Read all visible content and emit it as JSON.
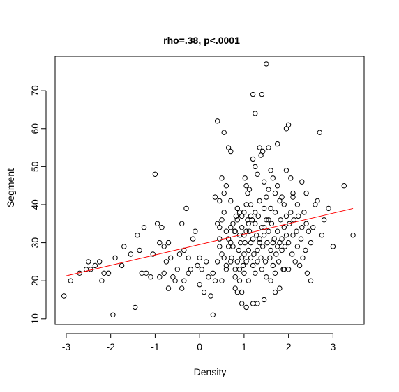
{
  "chart_data": {
    "type": "scatter",
    "title": "rho=.38, p<.0001",
    "xlabel": "Density",
    "ylabel": "Segment",
    "xlim": [
      -3.25,
      3.7
    ],
    "ylim": [
      8.5,
      79
    ],
    "x_ticks": [
      -3,
      -2,
      -1,
      0,
      1,
      2,
      3
    ],
    "y_ticks": [
      10,
      20,
      30,
      40,
      50,
      60,
      70
    ],
    "grid": false,
    "legend": "none",
    "colors": {
      "points": "#000000",
      "fit_line": "#ff0000",
      "frame": "#000000"
    },
    "fit_line": {
      "x": [
        -3.0,
        3.45
      ],
      "y": [
        21.3,
        39.0
      ]
    },
    "points": [
      [
        -3.05,
        16
      ],
      [
        -2.9,
        20
      ],
      [
        -2.7,
        22
      ],
      [
        -2.55,
        23
      ],
      [
        -2.5,
        25
      ],
      [
        -2.45,
        23
      ],
      [
        -2.35,
        24
      ],
      [
        -2.25,
        25
      ],
      [
        -2.2,
        20
      ],
      [
        -2.15,
        22
      ],
      [
        -2.05,
        22
      ],
      [
        -1.95,
        11
      ],
      [
        -1.9,
        26
      ],
      [
        -1.75,
        24
      ],
      [
        -1.7,
        29
      ],
      [
        -1.55,
        27
      ],
      [
        -1.45,
        13
      ],
      [
        -1.4,
        32
      ],
      [
        -1.35,
        28
      ],
      [
        -1.3,
        22
      ],
      [
        -1.25,
        34
      ],
      [
        -1.2,
        22
      ],
      [
        -1.1,
        21
      ],
      [
        -1.05,
        27
      ],
      [
        -1.0,
        48
      ],
      [
        -0.95,
        35
      ],
      [
        -0.9,
        21
      ],
      [
        -0.9,
        30
      ],
      [
        -0.85,
        34
      ],
      [
        -0.8,
        22
      ],
      [
        -0.8,
        29
      ],
      [
        -0.75,
        25
      ],
      [
        -0.7,
        18
      ],
      [
        -0.7,
        30
      ],
      [
        -0.65,
        26
      ],
      [
        -0.6,
        21
      ],
      [
        -0.55,
        20
      ],
      [
        -0.5,
        23
      ],
      [
        -0.45,
        27
      ],
      [
        -0.4,
        35
      ],
      [
        -0.4,
        18
      ],
      [
        -0.35,
        28
      ],
      [
        -0.35,
        20
      ],
      [
        -0.3,
        39
      ],
      [
        -0.25,
        26
      ],
      [
        -0.25,
        22
      ],
      [
        -0.2,
        23
      ],
      [
        -0.15,
        31
      ],
      [
        -0.1,
        33
      ],
      [
        -0.05,
        24
      ],
      [
        0.0,
        26
      ],
      [
        0.0,
        19
      ],
      [
        0.05,
        23
      ],
      [
        0.1,
        17
      ],
      [
        0.15,
        25
      ],
      [
        0.2,
        21
      ],
      [
        0.25,
        16
      ],
      [
        0.3,
        22
      ],
      [
        0.35,
        42
      ],
      [
        0.4,
        35
      ],
      [
        0.4,
        25
      ],
      [
        0.45,
        29
      ],
      [
        0.5,
        27
      ],
      [
        0.5,
        20
      ],
      [
        0.55,
        26
      ],
      [
        0.6,
        23
      ],
      [
        0.65,
        31
      ],
      [
        0.7,
        25
      ],
      [
        0.75,
        29
      ],
      [
        0.8,
        23
      ],
      [
        0.8,
        18
      ],
      [
        0.85,
        17
      ],
      [
        0.9,
        20
      ],
      [
        0.95,
        17
      ],
      [
        0.4,
        62
      ],
      [
        0.55,
        59
      ],
      [
        0.65,
        55
      ],
      [
        0.7,
        54
      ],
      [
        0.5,
        47
      ],
      [
        0.6,
        45
      ],
      [
        0.45,
        41
      ],
      [
        0.55,
        43
      ],
      [
        0.7,
        41
      ],
      [
        0.3,
        11
      ],
      [
        0.35,
        20
      ],
      [
        0.45,
        31
      ],
      [
        0.45,
        34
      ],
      [
        0.5,
        36
      ],
      [
        0.55,
        38
      ],
      [
        0.6,
        33
      ],
      [
        0.6,
        24
      ],
      [
        0.65,
        29
      ],
      [
        0.7,
        30
      ],
      [
        0.72,
        26
      ],
      [
        0.75,
        35
      ],
      [
        0.78,
        33
      ],
      [
        0.8,
        21
      ],
      [
        0.82,
        37
      ],
      [
        0.85,
        25
      ],
      [
        0.85,
        36
      ],
      [
        0.88,
        28
      ],
      [
        0.9,
        32
      ],
      [
        0.9,
        23
      ],
      [
        0.92,
        30
      ],
      [
        0.95,
        26
      ],
      [
        0.95,
        34
      ],
      [
        0.98,
        24
      ],
      [
        1.0,
        27
      ],
      [
        1.0,
        22
      ],
      [
        1.0,
        38
      ],
      [
        1.02,
        30
      ],
      [
        1.05,
        33
      ],
      [
        1.05,
        25
      ],
      [
        1.08,
        36
      ],
      [
        1.1,
        28
      ],
      [
        1.1,
        20
      ],
      [
        1.12,
        33
      ],
      [
        1.15,
        26
      ],
      [
        1.15,
        30
      ],
      [
        1.18,
        36
      ],
      [
        1.2,
        24
      ],
      [
        1.2,
        31
      ],
      [
        1.22,
        27
      ],
      [
        1.25,
        35
      ],
      [
        1.25,
        22
      ],
      [
        1.28,
        32
      ],
      [
        1.3,
        28
      ],
      [
        1.3,
        25
      ],
      [
        1.32,
        37
      ],
      [
        1.35,
        30
      ],
      [
        1.38,
        26
      ],
      [
        1.4,
        34
      ],
      [
        1.4,
        23
      ],
      [
        1.42,
        29
      ],
      [
        1.45,
        32
      ],
      [
        1.48,
        25
      ],
      [
        1.5,
        36
      ],
      [
        1.5,
        21
      ],
      [
        1.52,
        30
      ],
      [
        1.55,
        33
      ],
      [
        1.58,
        26
      ],
      [
        1.6,
        28
      ],
      [
        1.62,
        35
      ],
      [
        1.65,
        24
      ],
      [
        1.68,
        31
      ],
      [
        1.7,
        38
      ],
      [
        1.7,
        22
      ],
      [
        1.72,
        27
      ],
      [
        1.75,
        33
      ],
      [
        1.78,
        25
      ],
      [
        1.8,
        30
      ],
      [
        1.82,
        36
      ],
      [
        1.85,
        28
      ],
      [
        1.88,
        23
      ],
      [
        1.9,
        34
      ],
      [
        1.92,
        29
      ],
      [
        1.95,
        32
      ],
      [
        1.02,
        47
      ],
      [
        1.05,
        45
      ],
      [
        1.08,
        43
      ],
      [
        1.12,
        44
      ],
      [
        1.15,
        40
      ],
      [
        1.2,
        52
      ],
      [
        1.25,
        50
      ],
      [
        1.3,
        48
      ],
      [
        1.35,
        55
      ],
      [
        1.38,
        53
      ],
      [
        1.42,
        54
      ],
      [
        1.45,
        46
      ],
      [
        1.5,
        42
      ],
      [
        1.55,
        44
      ],
      [
        1.6,
        49
      ],
      [
        1.65,
        47
      ],
      [
        1.7,
        43
      ],
      [
        1.75,
        45
      ],
      [
        1.8,
        41
      ],
      [
        1.85,
        42
      ],
      [
        1.9,
        40
      ],
      [
        1.95,
        49
      ],
      [
        1.2,
        69
      ],
      [
        1.4,
        69
      ],
      [
        1.5,
        77
      ],
      [
        1.25,
        64
      ],
      [
        1.55,
        55
      ],
      [
        1.75,
        56
      ],
      [
        1.95,
        60
      ],
      [
        2.0,
        61
      ],
      [
        2.05,
        47
      ],
      [
        2.1,
        43
      ],
      [
        0.95,
        14
      ],
      [
        1.05,
        13
      ],
      [
        1.2,
        14
      ],
      [
        1.3,
        14
      ],
      [
        1.45,
        15
      ],
      [
        1.6,
        20
      ],
      [
        1.7,
        17
      ],
      [
        1.8,
        18
      ],
      [
        1.9,
        23
      ],
      [
        2.0,
        23
      ],
      [
        2.0,
        30
      ],
      [
        2.02,
        35
      ],
      [
        2.05,
        38
      ],
      [
        2.08,
        27
      ],
      [
        2.1,
        32
      ],
      [
        2.12,
        36
      ],
      [
        2.15,
        25
      ],
      [
        2.18,
        33
      ],
      [
        2.2,
        29
      ],
      [
        2.22,
        37
      ],
      [
        2.25,
        24
      ],
      [
        2.28,
        31
      ],
      [
        2.3,
        34
      ],
      [
        2.32,
        26
      ],
      [
        2.35,
        38
      ],
      [
        2.38,
        28
      ],
      [
        2.4,
        35
      ],
      [
        2.42,
        22
      ],
      [
        2.45,
        33
      ],
      [
        2.5,
        30
      ],
      [
        2.1,
        42
      ],
      [
        2.2,
        40
      ],
      [
        2.3,
        46
      ],
      [
        2.4,
        43
      ],
      [
        2.5,
        20
      ],
      [
        2.55,
        34
      ],
      [
        2.6,
        40
      ],
      [
        2.65,
        41
      ],
      [
        2.7,
        59
      ],
      [
        2.75,
        32
      ],
      [
        2.8,
        36
      ],
      [
        2.9,
        39
      ],
      [
        3.0,
        29
      ],
      [
        3.25,
        45
      ],
      [
        3.45,
        32
      ],
      [
        1.35,
        31
      ],
      [
        1.45,
        34
      ],
      [
        1.55,
        36
      ],
      [
        1.65,
        30
      ],
      [
        1.75,
        29
      ],
      [
        1.85,
        31
      ],
      [
        1.95,
        37
      ],
      [
        1.1,
        35
      ],
      [
        1.0,
        32
      ],
      [
        0.9,
        38
      ],
      [
        0.8,
        33
      ],
      [
        0.7,
        34
      ],
      [
        1.25,
        38
      ],
      [
        1.15,
        37
      ],
      [
        1.05,
        40
      ],
      [
        0.95,
        37
      ],
      [
        0.85,
        39
      ],
      [
        1.35,
        41
      ],
      [
        1.45,
        39
      ],
      [
        1.6,
        39
      ]
    ]
  }
}
